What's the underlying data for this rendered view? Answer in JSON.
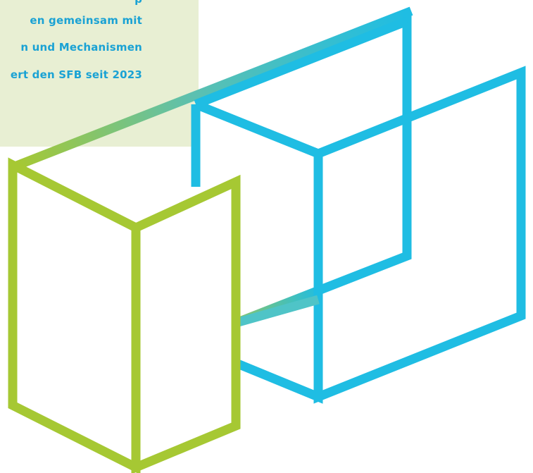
{
  "text_panel": {
    "lines": [
      "p",
      "en gemeinsam mit",
      "n und Mechanismen",
      "ert den SFB seit 2023"
    ]
  },
  "colors": {
    "panel_background": "#e8efd3",
    "text": "#1aa2d4",
    "green_frame": "#a6c833",
    "blue_frame": "#1fbde3"
  }
}
